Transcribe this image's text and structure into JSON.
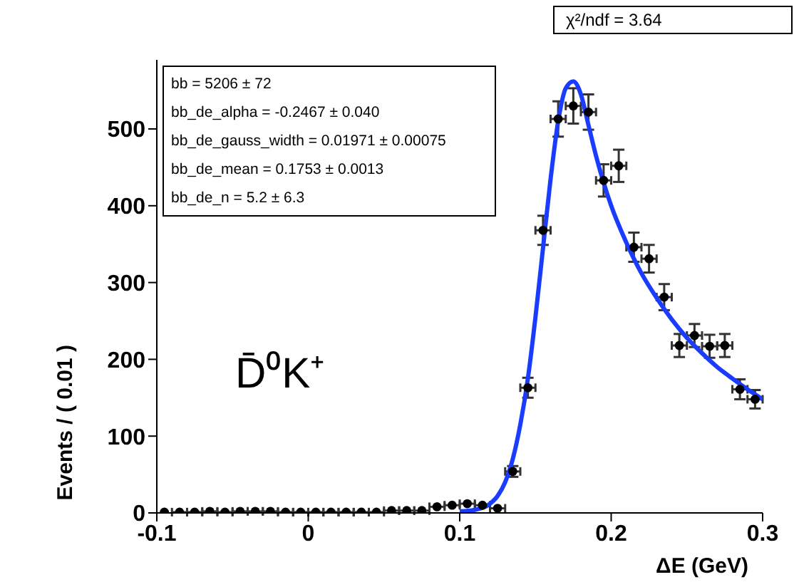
{
  "chart_data": {
    "type": "scatter",
    "xlabel": "ΔE (GeV)",
    "ylabel": "Events / ( 0.01 )",
    "xlim": [
      -0.1,
      0.3
    ],
    "xticks": [
      -0.1,
      0,
      0.1,
      0.2,
      0.3
    ],
    "ylim": [
      0,
      590
    ],
    "yticks": [
      0,
      100,
      200,
      300,
      400,
      500
    ],
    "grid": false,
    "legend": false,
    "annotations": [
      "bb =  5206 ± 72",
      "bb_de_alpha = -0.2467 ± 0.040",
      "bb_de_gauss_width =  0.01971 ± 0.00075",
      "bb_de_mean =  0.1753 ± 0.0013",
      "bb_de_n =  5.2 ± 6.3",
      "χ²/ndf = 3.64",
      "D̄⁰K⁺"
    ],
    "series": [
      {
        "color": "#000000",
        "marker": "circle",
        "x": [
          -0.095,
          -0.085,
          -0.075,
          -0.065,
          -0.055,
          -0.045,
          -0.035,
          -0.025,
          -0.015,
          -0.005,
          0.005,
          0.015,
          0.025,
          0.035,
          0.045,
          0.055,
          0.065,
          0.075,
          0.085,
          0.095,
          0.105,
          0.115,
          0.125,
          0.135,
          0.145,
          0.155,
          0.165,
          0.175,
          0.185,
          0.195,
          0.205,
          0.215,
          0.225,
          0.235,
          0.245,
          0.255,
          0.265,
          0.275,
          0.285,
          0.295
        ],
        "values": [
          1,
          1,
          1,
          2,
          1,
          2,
          2,
          2,
          1,
          1,
          1,
          1,
          1,
          1,
          1,
          3,
          3,
          3,
          8,
          10,
          12,
          10,
          6,
          54,
          163,
          368,
          513,
          530,
          522,
          433,
          452,
          346,
          331,
          281,
          218,
          231,
          217,
          218,
          161,
          148
        ],
        "errors": [
          null,
          null,
          null,
          null,
          null,
          null,
          null,
          null,
          null,
          null,
          null,
          null,
          null,
          null,
          null,
          null,
          null,
          null,
          null,
          null,
          null,
          null,
          null,
          7,
          13,
          19,
          23,
          23,
          23,
          21,
          21,
          19,
          18,
          17,
          15,
          15,
          15,
          15,
          13,
          12
        ],
        "xerrors": [
          null,
          0.005,
          0.005,
          0.005,
          0.005,
          0.005,
          0.005,
          0.005,
          0.005,
          0.005,
          0.005,
          0.005,
          0.005,
          0.005,
          0.005,
          0.005,
          0.005,
          0.005,
          0.005,
          0.005,
          0.005,
          0.005,
          0.005,
          0.005,
          0.005,
          0.005,
          0.005,
          0.005,
          0.005,
          0.005,
          0.005,
          0.005,
          0.005,
          0.005,
          0.005,
          0.005,
          0.005,
          0.005,
          0.005,
          0.005
        ]
      },
      {
        "type": "line",
        "color": "#1a3cff",
        "marker": "none",
        "line_style": "solid",
        "x": [
          0.1,
          0.11,
          0.12,
          0.125,
          0.13,
          0.135,
          0.14,
          0.145,
          0.15,
          0.155,
          0.16,
          0.165,
          0.17,
          0.175,
          0.18,
          0.185,
          0.19,
          0.195,
          0.2,
          0.21,
          0.22,
          0.23,
          0.24,
          0.25,
          0.26,
          0.27,
          0.28,
          0.29,
          0.3
        ],
        "values": [
          2,
          4,
          12,
          22,
          40,
          70,
          115,
          175,
          255,
          345,
          435,
          510,
          553,
          562,
          545,
          505,
          465,
          430,
          400,
          352,
          312,
          280,
          252,
          228,
          208,
          190,
          175,
          161,
          148
        ]
      }
    ]
  }
}
